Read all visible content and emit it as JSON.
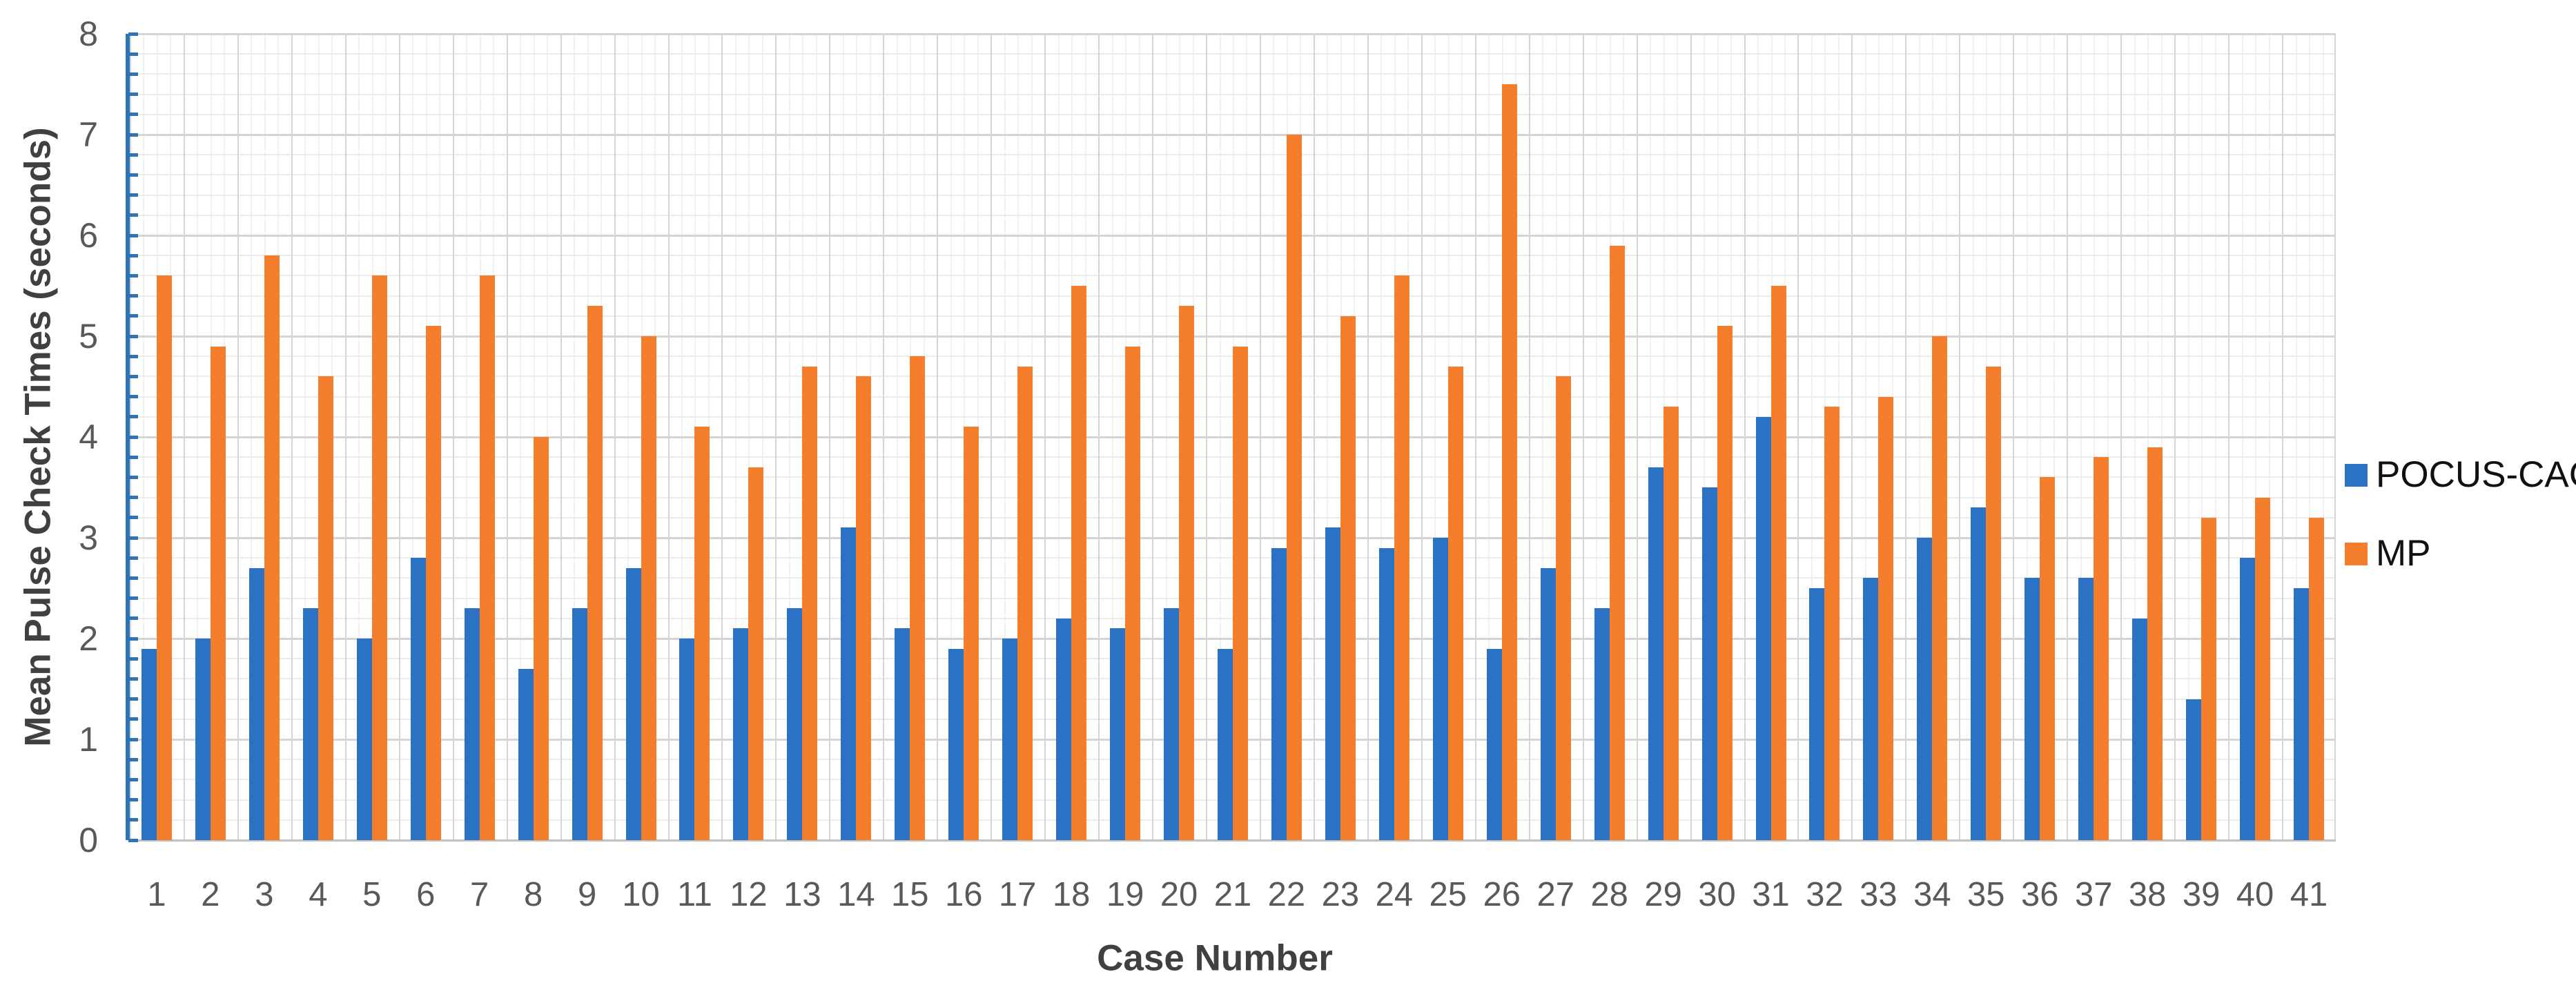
{
  "chart_data": {
    "type": "bar",
    "title": "",
    "xlabel": "Case Number",
    "ylabel": "Mean Pulse Check Times (seconds)",
    "ylim": [
      0,
      8
    ],
    "y_major_step": 1,
    "y_minor_step": 0.2,
    "y_tick_labels": [
      "0",
      "1",
      "2",
      "3",
      "4",
      "5",
      "6",
      "7",
      "8"
    ],
    "grid": true,
    "legend_position": "right",
    "categories": [
      "1",
      "2",
      "3",
      "4",
      "5",
      "6",
      "7",
      "8",
      "9",
      "10",
      "11",
      "12",
      "13",
      "14",
      "15",
      "16",
      "17",
      "18",
      "19",
      "20",
      "21",
      "22",
      "23",
      "24",
      "25",
      "26",
      "27",
      "28",
      "29",
      "30",
      "31",
      "32",
      "33",
      "34",
      "35",
      "36",
      "37",
      "38",
      "39",
      "40",
      "41"
    ],
    "series": [
      {
        "name": "POCUS-CAC",
        "color": "#2b71c4",
        "values": [
          1.9,
          2.0,
          2.7,
          2.3,
          2.0,
          2.8,
          2.3,
          1.7,
          2.3,
          2.7,
          2.0,
          2.1,
          2.3,
          3.1,
          2.1,
          1.9,
          2.0,
          2.2,
          2.1,
          2.3,
          1.9,
          2.9,
          3.1,
          2.9,
          3.0,
          1.9,
          2.7,
          2.3,
          3.7,
          3.5,
          4.2,
          2.5,
          2.6,
          3.0,
          3.3,
          2.6,
          2.6,
          2.2,
          1.4,
          2.8,
          2.5
        ]
      },
      {
        "name": "MP",
        "color": "#f57e2c",
        "values": [
          5.6,
          4.9,
          5.8,
          4.6,
          5.6,
          5.1,
          5.6,
          4.0,
          5.3,
          5.0,
          4.1,
          3.7,
          4.7,
          4.6,
          4.8,
          4.1,
          4.7,
          5.5,
          4.9,
          5.3,
          4.9,
          7.0,
          5.2,
          5.6,
          4.7,
          7.5,
          4.6,
          5.9,
          4.3,
          5.1,
          5.5,
          4.3,
          4.4,
          5.0,
          4.7,
          3.6,
          3.8,
          3.9,
          3.2,
          3.4,
          3.2
        ]
      }
    ],
    "axis_colors": {
      "y_axis_line": "#2e74b5",
      "tick_label": "#595959",
      "axis_title": "#404040",
      "legend_text": "#111111",
      "grid_major": "#d5d5d5",
      "grid_minor": "#ececec"
    }
  }
}
